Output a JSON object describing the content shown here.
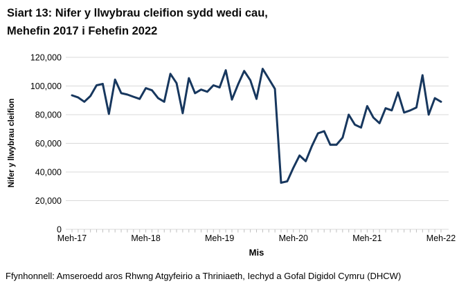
{
  "title": {
    "line1": "Siart 13: Nifer y llwybrau cleifion sydd wedi cau,",
    "line2": "Mehefin 2017 i Fehefin 2022",
    "full": "Siart 13: Nifer y llwybrau cleifion sydd wedi cau, Mehefin 2017 i Fehefin 2022"
  },
  "footer": {
    "source": "Ffynhonnell: Amseroedd aros Rhwng Atgyfeirio a Thriniaeth, Iechyd a Gofal Digidol Cymru (DHCW)"
  },
  "colors": {
    "line": "#17375E",
    "grid": "#D9D9D9",
    "tick": "#BFBFBF",
    "text": "#000000"
  },
  "chart_data": {
    "type": "line",
    "title": "Siart 13: Nifer y llwybrau cleifion sydd wedi cau, Mehefin 2017 i Fehefin 2022",
    "xlabel": "Mis",
    "ylabel": "Nifer y llwybrau cleifion",
    "ylim": [
      0,
      120000
    ],
    "y_ticks": [
      0,
      20000,
      40000,
      60000,
      80000,
      100000,
      120000
    ],
    "x_tick_labels": [
      "Meh-17",
      "Meh-18",
      "Meh-19",
      "Meh-20",
      "Meh-21",
      "Meh-22"
    ],
    "x_major_every_n_points": 12,
    "grid": "horizontal",
    "legend_position": "none",
    "x": [
      "2017-06",
      "2017-07",
      "2017-08",
      "2017-09",
      "2017-10",
      "2017-11",
      "2017-12",
      "2018-01",
      "2018-02",
      "2018-03",
      "2018-04",
      "2018-05",
      "2018-06",
      "2018-07",
      "2018-08",
      "2018-09",
      "2018-10",
      "2018-11",
      "2018-12",
      "2019-01",
      "2019-02",
      "2019-03",
      "2019-04",
      "2019-05",
      "2019-06",
      "2019-07",
      "2019-08",
      "2019-09",
      "2019-10",
      "2019-11",
      "2019-12",
      "2020-01",
      "2020-02",
      "2020-03",
      "2020-04",
      "2020-05",
      "2020-06",
      "2020-07",
      "2020-08",
      "2020-09",
      "2020-10",
      "2020-11",
      "2020-12",
      "2021-01",
      "2021-02",
      "2021-03",
      "2021-04",
      "2021-05",
      "2021-06",
      "2021-07",
      "2021-08",
      "2021-09",
      "2021-10",
      "2021-11",
      "2021-12",
      "2022-01",
      "2022-02",
      "2022-03",
      "2022-04",
      "2022-05",
      "2022-06"
    ],
    "series": [
      {
        "name": "Nifer y llwybrau cleifion",
        "color": "#17375E",
        "values": [
          93500,
          92000,
          89000,
          93000,
          100500,
          101500,
          80500,
          104500,
          95000,
          94000,
          92500,
          91000,
          98500,
          97000,
          91500,
          89000,
          108500,
          102000,
          81000,
          105500,
          95000,
          97500,
          96000,
          100500,
          99000,
          111000,
          90500,
          101000,
          110500,
          104000,
          91000,
          112000,
          105000,
          98000,
          32500,
          33500,
          43000,
          51500,
          47500,
          58000,
          67000,
          68500,
          59000,
          59000,
          64000,
          80000,
          73000,
          71000,
          86000,
          78000,
          74000,
          84500,
          83000,
          95500,
          81500,
          83000,
          85000,
          107500,
          80000,
          91500,
          89000
        ]
      }
    ]
  }
}
